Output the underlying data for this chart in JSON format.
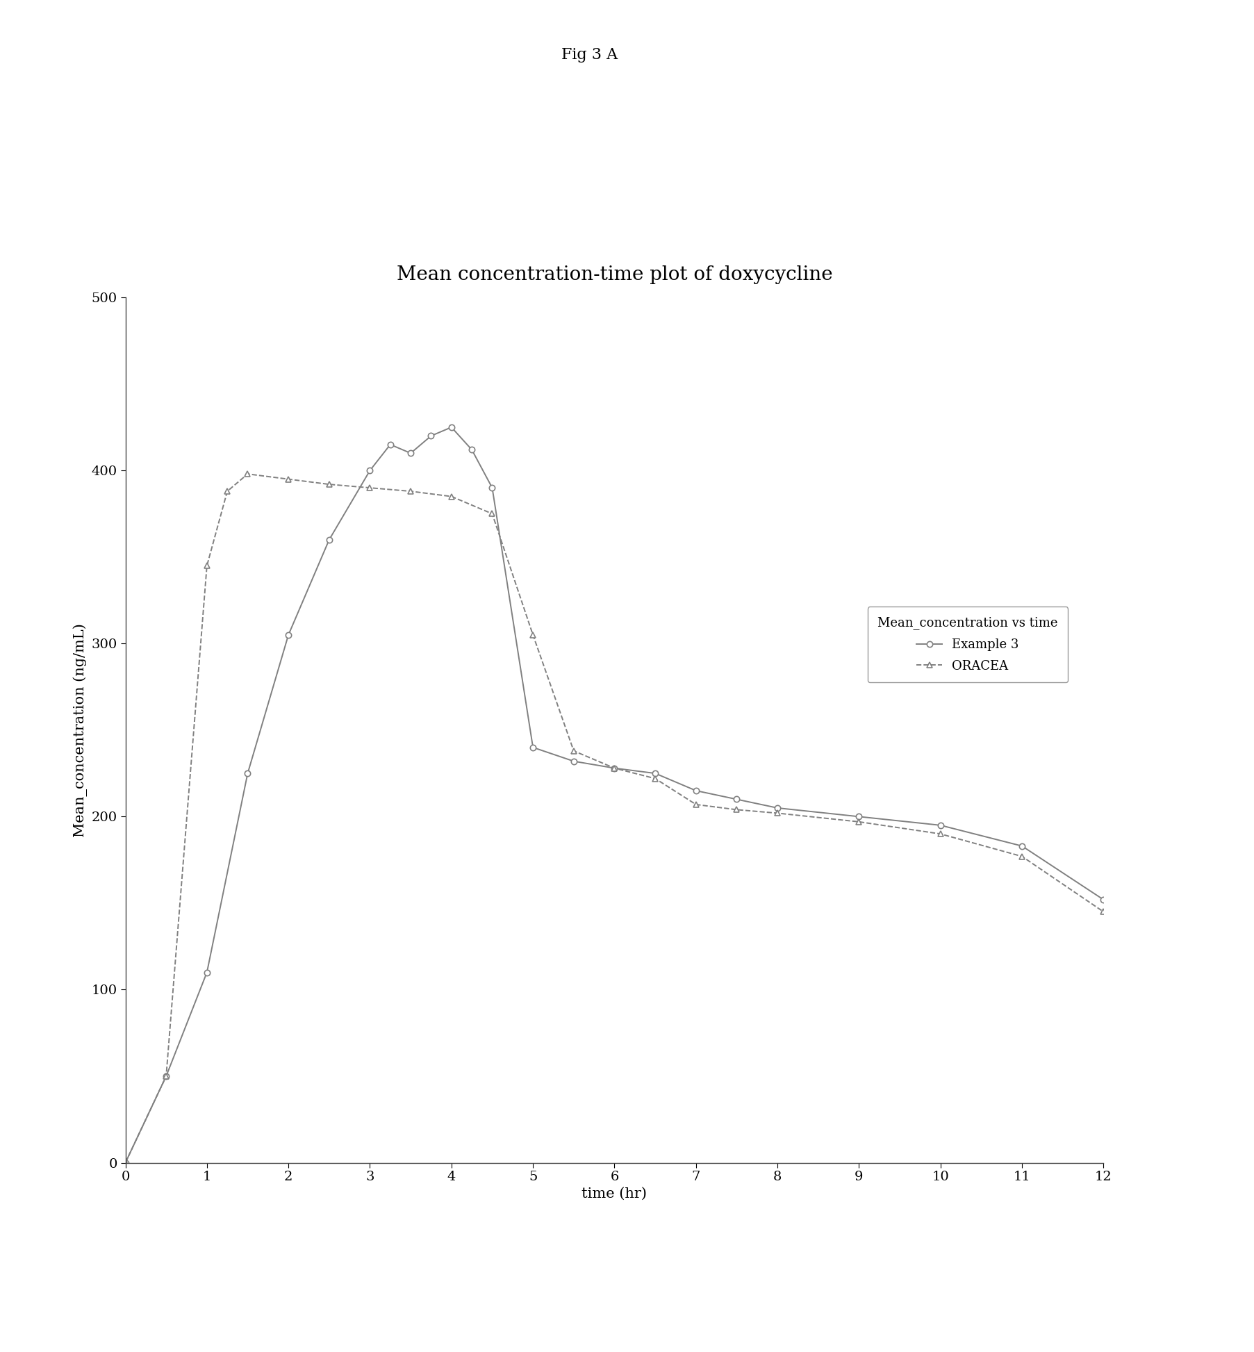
{
  "title": "Mean concentration-time plot of doxycycline",
  "fig_label": "Fig 3 A",
  "xlabel": "time (hr)",
  "ylabel": "Mean_concentration (ng/mL)",
  "xlim": [
    0,
    12
  ],
  "ylim": [
    0,
    500
  ],
  "xticks": [
    0,
    1,
    2,
    3,
    4,
    5,
    6,
    7,
    8,
    9,
    10,
    11,
    12
  ],
  "yticks": [
    0,
    100,
    200,
    300,
    400,
    500
  ],
  "legend_title": "Mean_concentration vs time",
  "example3_label": "Example 3",
  "oracea_label": "ORACEA",
  "example3_x": [
    0,
    0.5,
    1,
    1.5,
    2,
    2.5,
    3,
    3.25,
    3.5,
    3.75,
    4,
    4.25,
    4.5,
    5,
    5.5,
    6,
    6.5,
    7,
    7.5,
    8,
    9,
    10,
    11,
    12
  ],
  "example3_y": [
    0,
    50,
    110,
    225,
    305,
    360,
    400,
    415,
    410,
    420,
    425,
    412,
    390,
    240,
    232,
    228,
    225,
    215,
    210,
    205,
    200,
    195,
    183,
    152
  ],
  "oracea_x": [
    0,
    0.5,
    1,
    1.25,
    1.5,
    2,
    2.5,
    3,
    3.5,
    4,
    4.5,
    5,
    5.5,
    6,
    6.5,
    7,
    7.5,
    8,
    9,
    10,
    11,
    12
  ],
  "oracea_y": [
    0,
    50,
    345,
    388,
    398,
    395,
    392,
    390,
    388,
    385,
    375,
    305,
    238,
    228,
    222,
    207,
    204,
    202,
    197,
    190,
    177,
    145
  ],
  "line_color": "#808080",
  "background_color": "#ffffff",
  "title_fontsize": 20,
  "label_fontsize": 15,
  "tick_fontsize": 14,
  "legend_fontsize": 13,
  "fig_label_fontsize": 16
}
